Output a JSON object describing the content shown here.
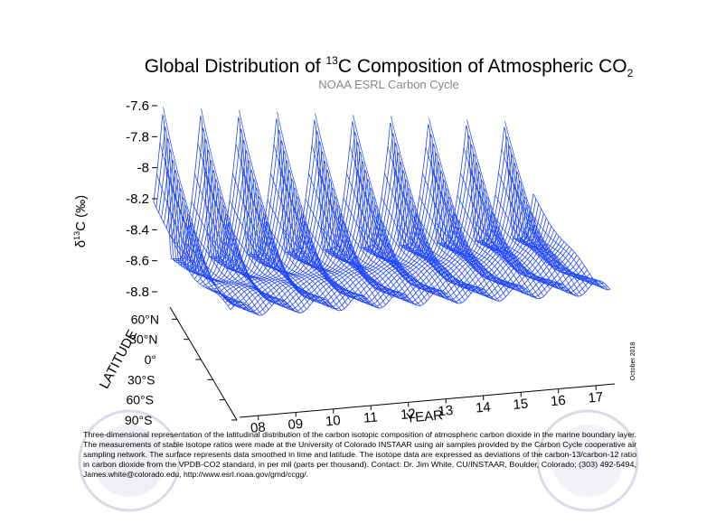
{
  "chart_data": {
    "type": "surface3d",
    "title": {
      "before": "Global Distribution of ",
      "sup": "13",
      "after": "C Composition of Atmospheric CO",
      "sub": "2"
    },
    "subtitle": "NOAA ESRL Carbon Cycle",
    "zlabel": {
      "symbol": "δ",
      "sup": "13",
      "rest": "C (‰)"
    },
    "zlim": [
      -8.8,
      -7.6
    ],
    "zticks": [
      -7.6,
      -7.8,
      -8.0,
      -8.2,
      -8.4,
      -8.6,
      -8.8
    ],
    "ylabel": "LATITUDE",
    "ylim": [
      -90,
      90
    ],
    "yticks": [
      {
        "value": 60,
        "label": "60°N"
      },
      {
        "value": 30,
        "label": "30°N"
      },
      {
        "value": 0,
        "label": "0°"
      },
      {
        "value": -30,
        "label": "30°S"
      },
      {
        "value": -60,
        "label": "60°S"
      },
      {
        "value": -90,
        "label": "90°S"
      }
    ],
    "xlabel": "YEAR",
    "xlim": [
      7.5,
      17.5
    ],
    "xticks": [
      {
        "value": 8,
        "label": "08"
      },
      {
        "value": 9,
        "label": "09"
      },
      10,
      11,
      12,
      13,
      14,
      15,
      16,
      17
    ],
    "color": "#1f44ff",
    "date_note": "October 2018",
    "caption": [
      "Three-dimensional representation of the latitudinal distribution of the carbon isotopic composition of atmospheric carbon dioxide in the marine boundary layer.",
      "The measurements of stable isotope ratios were made at the University of Colorado INSTAAR using air samples provided by the Carbon Cycle cooperative air",
      "sampling network.  The surface represents data smoothed in time and latitude.  The isotope data are expressed as deviations of the carbon-13/carbon-12 ratio",
      "in carbon dioxide from the VPDB-CO2 standard, in per mil (parts per thousand).  Contact:  Dr. Jim White, CU/INSTAAR, Boulder, Colorado; (303) 492-5494,",
      "James.white@colorado.edu, http://www.esrl.noaa.gov/gmd/ccgg/."
    ]
  }
}
